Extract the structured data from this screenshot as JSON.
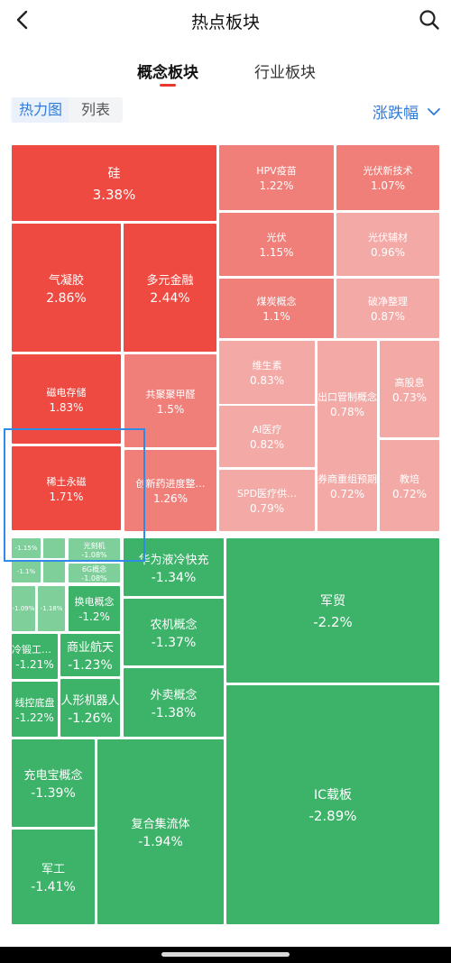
{
  "header": {
    "title": "热点板块"
  },
  "tabs": {
    "concept": "概念板块",
    "industry": "行业板块"
  },
  "view": {
    "heatmap": "热力图",
    "list": "列表"
  },
  "sort": {
    "label": "涨跌幅"
  },
  "colors": {
    "accent": "#2f7bd9",
    "up_strong": "#ee4a41",
    "up_mid": "#f07f79",
    "up_weak": "#f3aaa6",
    "down_strong": "#3db36a",
    "down_weak": "#7fcf9b"
  },
  "tiles": {
    "gui": {
      "name": "硅",
      "pct": "3.38%"
    },
    "hpv": {
      "name": "HPV疫苗",
      "pct": "1.22%"
    },
    "gfxjs": {
      "name": "光伏新技术",
      "pct": "1.07%"
    },
    "qnj": {
      "name": "气凝胶",
      "pct": "2.86%"
    },
    "dyjr": {
      "name": "多元金融",
      "pct": "2.44%"
    },
    "gf": {
      "name": "光伏",
      "pct": "1.15%"
    },
    "gffc": {
      "name": "光伏辅材",
      "pct": "0.96%"
    },
    "mtgn": {
      "name": "煤炭概念",
      "pct": "1.1%"
    },
    "pjzl": {
      "name": "破净整理",
      "pct": "0.87%"
    },
    "dccc": {
      "name": "磁电存储",
      "pct": "1.83%"
    },
    "gjjjq": {
      "name": "共聚聚甲醛",
      "pct": "1.5%"
    },
    "wss": {
      "name": "维生素",
      "pct": "0.83%"
    },
    "ckgz": {
      "name": "出口管制概念",
      "pct": "0.78%"
    },
    "ggx": {
      "name": "高股息",
      "pct": "0.73%"
    },
    "ai": {
      "name": "AI医疗",
      "pct": "0.82%"
    },
    "xtyc": {
      "name": "稀土永磁",
      "pct": "1.71%"
    },
    "cxy": {
      "name": "创新药进度整…",
      "pct": "1.26%"
    },
    "spd": {
      "name": "SPD医疗供…",
      "pct": "0.79%"
    },
    "qscz": {
      "name": "券商重组预期",
      "pct": "0.72%"
    },
    "jp": {
      "name": "教培",
      "pct": "0.72%"
    },
    "t115": {
      "pct": "-1.15%"
    },
    "t11": {
      "pct": "-1.1%"
    },
    "gkj": {
      "name": "光刻机",
      "pct": "-1.08%"
    },
    "6g": {
      "name": "6G概念",
      "pct": "-1.08%"
    },
    "t109": {
      "pct": "-1.09%"
    },
    "t118": {
      "pct": "-1.18%"
    },
    "hdgn": {
      "name": "换电概念",
      "pct": "-1.2%"
    },
    "ldgy": {
      "name": "冷锻工艺概念",
      "pct": "-1.21%"
    },
    "syht": {
      "name": "商业航天",
      "pct": "-1.23%"
    },
    "xkdp": {
      "name": "线控底盘",
      "pct": "-1.22%"
    },
    "rxjqr": {
      "name": "人形机器人",
      "pct": "-1.26%"
    },
    "hwylkc": {
      "name": "华为液冷快充",
      "pct": "-1.34%"
    },
    "njgn": {
      "name": "农机概念",
      "pct": "-1.37%"
    },
    "wmgn": {
      "name": "外卖概念",
      "pct": "-1.38%"
    },
    "jm": {
      "name": "军贸",
      "pct": "-2.2%"
    },
    "cdbgn": {
      "name": "充电宝概念",
      "pct": "-1.39%"
    },
    "fhjlt": {
      "name": "复合集流体",
      "pct": "-1.94%"
    },
    "ic": {
      "name": "IC载板",
      "pct": "-2.89%"
    },
    "jg": {
      "name": "军工",
      "pct": "-1.41%"
    }
  }
}
